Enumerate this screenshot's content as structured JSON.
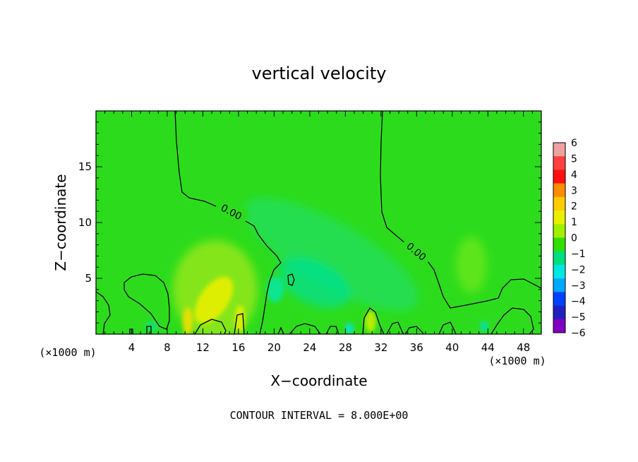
{
  "chart_data": {
    "type": "heatmap",
    "title": "vertical velocity",
    "xlabel": "X−coordinate",
    "ylabel": "Z−coordinate",
    "x_unit_left": "(×1000 m)",
    "x_unit_right": "(×1000 m)",
    "xlim": [
      0,
      50
    ],
    "ylim": [
      0,
      20
    ],
    "xticks": [
      4,
      8,
      12,
      16,
      20,
      24,
      28,
      32,
      36,
      40,
      44,
      48
    ],
    "yticks": [
      5,
      10,
      15
    ],
    "contour_labels": [
      "0.00",
      "0.00"
    ],
    "footer": "CONTOUR INTERVAL = 8.000E+00",
    "colorbar": {
      "levels": [
        6,
        5,
        4,
        3,
        2,
        1,
        0,
        -1,
        -2,
        -3,
        -4,
        -5,
        -6
      ],
      "labels": [
        "6",
        "5",
        "4",
        "3",
        "2",
        "1",
        "0",
        "−1",
        "−2",
        "−3",
        "−4",
        "−5",
        "−6"
      ],
      "colors": [
        "#f0a0a0",
        "#ff4040",
        "#ff1010",
        "#ff8c00",
        "#ffcc00",
        "#e8f000",
        "#a0f000",
        "#30e000",
        "#00e080",
        "#00e8e0",
        "#00a8ff",
        "#0040ff",
        "#2020c0",
        "#8000c0"
      ]
    },
    "field_base_color": "#2cdc1c",
    "grid": false
  }
}
